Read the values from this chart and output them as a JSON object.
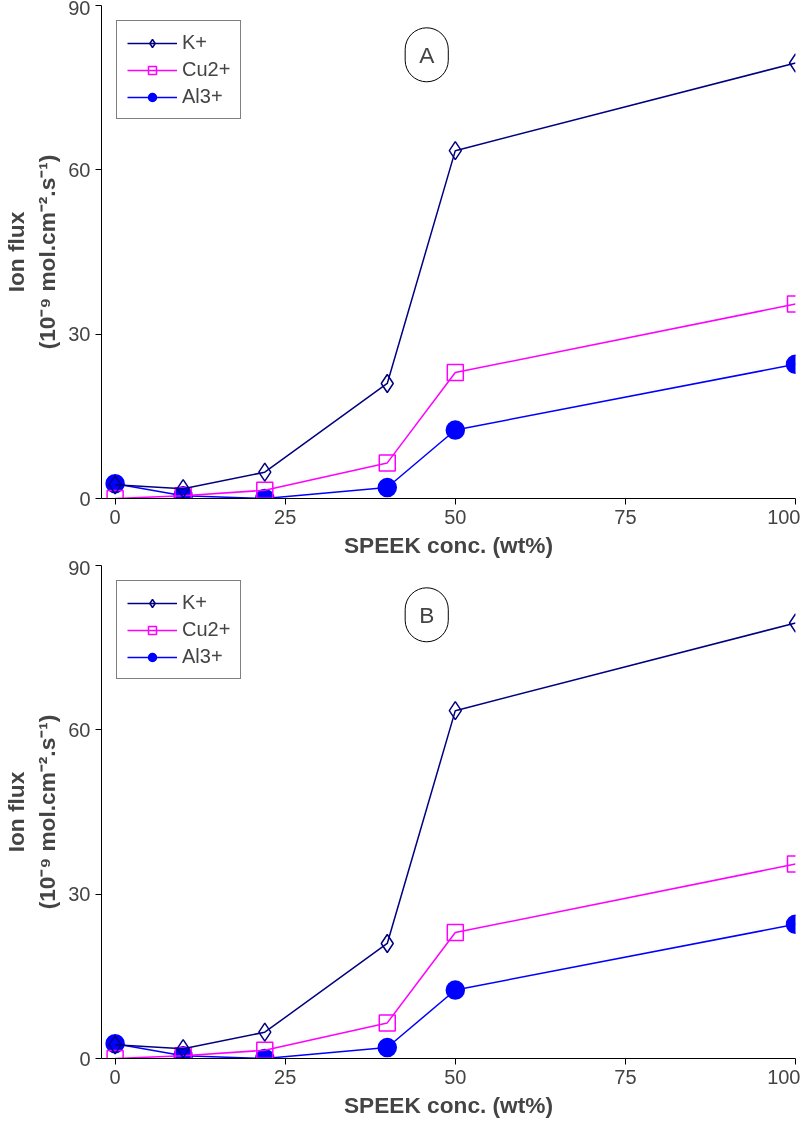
{
  "chart_data": [
    {
      "type": "line",
      "xlabel": "SPEEK conc. (wt%)",
      "ylabel": "Ion flux\n(10⁻⁹ mol.cm⁻².s⁻¹)",
      "x": [
        0,
        10,
        22,
        40,
        50,
        100
      ],
      "xlim": [
        -2,
        100
      ],
      "ylim": [
        0,
        90
      ],
      "xticks": [
        0,
        25,
        50,
        75,
        100
      ],
      "yticks": [
        0,
        30,
        60,
        90
      ],
      "legend": "top left",
      "grid": false,
      "annotations": [
        "A"
      ],
      "series": [
        {
          "name": "K+",
          "color": "#000080",
          "marker": "diamond",
          "values": [
            2.5,
            1.8,
            4.8,
            21,
            63.5,
            79.5
          ]
        },
        {
          "name": "Cu2+",
          "color": "#ff00ff",
          "marker": "square",
          "values": [
            0,
            0.5,
            1.5,
            6.5,
            23,
            35.5
          ]
        },
        {
          "name": "Al3+",
          "color": "#0000ff",
          "marker": "circle",
          "values": [
            2.7,
            0.5,
            0,
            2,
            12.5,
            24.5
          ]
        }
      ]
    },
    {
      "type": "line",
      "xlabel": "SPEEK conc. (wt%)",
      "ylabel": "Ion flux\n(10⁻⁹ mol.cm⁻².s⁻¹)",
      "x": [
        0,
        10,
        22,
        40,
        50,
        100
      ],
      "xlim": [
        -2,
        100
      ],
      "ylim": [
        0,
        90
      ],
      "xticks": [
        0,
        25,
        50,
        75,
        100
      ],
      "yticks": [
        0,
        30,
        60,
        90
      ],
      "legend": "top left",
      "grid": false,
      "annotations": [
        "B"
      ],
      "series": [
        {
          "name": "K+",
          "color": "#000080",
          "marker": "diamond",
          "values": [
            2.5,
            1.8,
            4.8,
            21,
            63.5,
            79.5
          ]
        },
        {
          "name": "Cu2+",
          "color": "#ff00ff",
          "marker": "square",
          "values": [
            0,
            0.5,
            1.5,
            6.5,
            23,
            35.5
          ]
        },
        {
          "name": "Al3+",
          "color": "#0000ff",
          "marker": "circle",
          "values": [
            2.7,
            0.5,
            0,
            2,
            12.5,
            24.5
          ]
        }
      ]
    }
  ]
}
